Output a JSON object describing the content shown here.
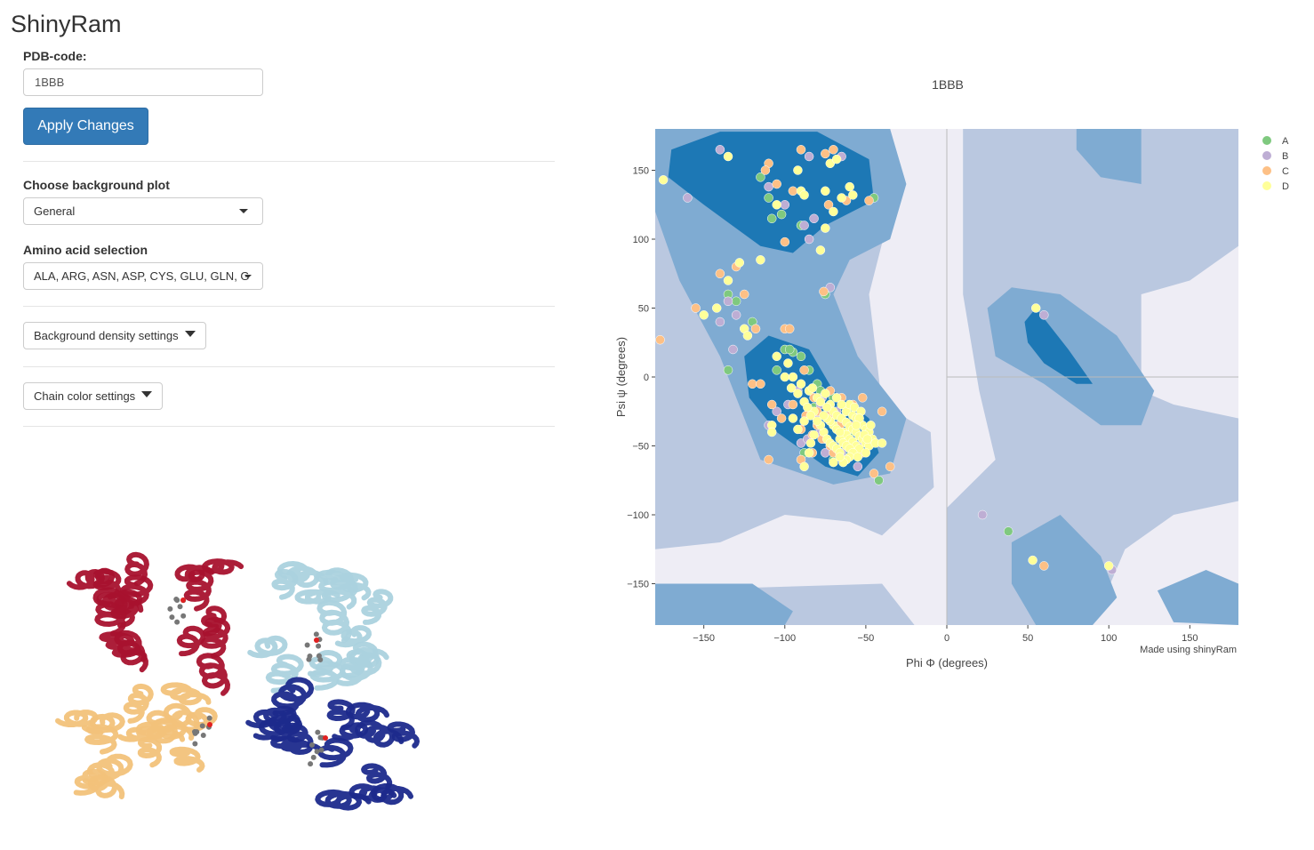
{
  "app": {
    "title": "ShinyRam"
  },
  "pdb": {
    "label": "PDB-code:",
    "value": "1BBB"
  },
  "apply_button": {
    "label": "Apply Changes"
  },
  "background_plot": {
    "label": "Choose background plot",
    "selected": "General"
  },
  "amino_selection": {
    "label": "Amino acid selection",
    "selected": "ALA, ARG, ASN, ASP, CYS, GLU, GLN, G"
  },
  "density_settings": {
    "label": "Background density settings"
  },
  "chain_settings": {
    "label": "Chain color settings"
  },
  "protein_view": {
    "chain_colors": [
      "#a8122e",
      "#f2c27a",
      "#abd2de",
      "#1c2a8c"
    ],
    "ligand_color": "#777777"
  },
  "chart_data": {
    "type": "scatter",
    "title": "1BBB",
    "xlabel": "Phi Φ (degrees)",
    "ylabel": "Psi ψ (degrees)",
    "xlim": [
      -180,
      180
    ],
    "ylim": [
      -180,
      180
    ],
    "xticks": [
      -150,
      -100,
      -50,
      0,
      50,
      100,
      150
    ],
    "yticks": [
      150,
      100,
      50,
      0,
      -50,
      -100,
      -150
    ],
    "xtick_labels": [
      "−150",
      "−100",
      "−50",
      "0",
      "50",
      "100",
      "150"
    ],
    "ytick_labels": [
      "150",
      "100",
      "50",
      "0",
      "−50",
      "−100",
      "−150"
    ],
    "annotation": "Made using shinyRam",
    "legend_position": "top-right",
    "density_colors": [
      "#eeedf5",
      "#bac8e0",
      "#7fabd2",
      "#1d78b5"
    ],
    "series": [
      {
        "name": "A",
        "color": "#7fc97f",
        "points": [
          [
            -115,
            145
          ],
          [
            -110,
            130
          ],
          [
            -108,
            115
          ],
          [
            -102,
            118
          ],
          [
            -90,
            110
          ],
          [
            -45,
            130
          ],
          [
            -135,
            60
          ],
          [
            -130,
            55
          ],
          [
            -120,
            40
          ],
          [
            -135,
            5
          ],
          [
            -100,
            20
          ],
          [
            -95,
            18
          ],
          [
            -90,
            15
          ],
          [
            -85,
            5
          ],
          [
            -80,
            -5
          ],
          [
            -78,
            -10
          ],
          [
            -70,
            -15
          ],
          [
            -65,
            -30
          ],
          [
            -60,
            -40
          ],
          [
            -75,
            -45
          ],
          [
            -80,
            -35
          ],
          [
            -85,
            -25
          ],
          [
            -88,
            -55
          ],
          [
            -42,
            -75
          ],
          [
            -60,
            -22
          ],
          [
            -82,
            -22
          ],
          [
            -70,
            -60
          ],
          [
            38,
            -112
          ],
          [
            -105,
            5
          ],
          [
            -75,
            60
          ],
          [
            -97,
            20
          ]
        ]
      },
      {
        "name": "B",
        "color": "#beaed4",
        "points": [
          [
            -140,
            165
          ],
          [
            -160,
            130
          ],
          [
            -110,
            138
          ],
          [
            -100,
            125
          ],
          [
            -85,
            100
          ],
          [
            -88,
            110
          ],
          [
            -82,
            115
          ],
          [
            -65,
            160
          ],
          [
            -85,
            160
          ],
          [
            -135,
            55
          ],
          [
            -140,
            40
          ],
          [
            -132,
            20
          ],
          [
            -92,
            -10
          ],
          [
            -78,
            -20
          ],
          [
            -72,
            -32
          ],
          [
            -90,
            -48
          ],
          [
            -86,
            -45
          ],
          [
            -75,
            -55
          ],
          [
            -65,
            -55
          ],
          [
            -55,
            -65
          ],
          [
            -68,
            -25
          ],
          [
            -98,
            -20
          ],
          [
            -105,
            -25
          ],
          [
            -110,
            -35
          ],
          [
            -80,
            -30
          ],
          [
            -60,
            -45
          ],
          [
            -55,
            -50
          ],
          [
            -50,
            -40
          ],
          [
            -72,
            65
          ],
          [
            -78,
            -40
          ],
          [
            -67,
            -35
          ],
          [
            22,
            -100
          ],
          [
            60,
            45
          ],
          [
            102,
            -140
          ],
          [
            -77,
            -15
          ],
          [
            -130,
            45
          ]
        ]
      },
      {
        "name": "C",
        "color": "#fdc086",
        "points": [
          [
            -177,
            27
          ],
          [
            -155,
            50
          ],
          [
            -140,
            75
          ],
          [
            -130,
            80
          ],
          [
            -125,
            60
          ],
          [
            -118,
            35
          ],
          [
            -120,
            -5
          ],
          [
            -115,
            -5
          ],
          [
            -108,
            -20
          ],
          [
            -95,
            -20
          ],
          [
            -100,
            35
          ],
          [
            -110,
            155
          ],
          [
            -112,
            150
          ],
          [
            -105,
            140
          ],
          [
            -90,
            165
          ],
          [
            -75,
            162
          ],
          [
            -70,
            165
          ],
          [
            -73,
            125
          ],
          [
            -62,
            128
          ],
          [
            -48,
            128
          ],
          [
            -100,
            98
          ],
          [
            -97,
            35
          ],
          [
            -85,
            -10
          ],
          [
            -82,
            -15
          ],
          [
            -77,
            -45
          ],
          [
            -83,
            -42
          ],
          [
            -72,
            -50
          ],
          [
            -70,
            -55
          ],
          [
            -55,
            -30
          ],
          [
            -50,
            -45
          ],
          [
            -45,
            -70
          ],
          [
            -35,
            -65
          ],
          [
            -40,
            -25
          ],
          [
            -52,
            -55
          ],
          [
            -66,
            -35
          ],
          [
            -58,
            -20
          ],
          [
            -65,
            -15
          ],
          [
            -87,
            -28
          ],
          [
            -90,
            -38
          ],
          [
            -80,
            -25
          ],
          [
            -72,
            -10
          ],
          [
            -64,
            -45
          ],
          [
            -88,
            5
          ],
          [
            -76,
            62
          ],
          [
            -110,
            -60
          ],
          [
            -90,
            -60
          ],
          [
            -95,
            135
          ],
          [
            -102,
            -30
          ],
          [
            -83,
            -55
          ],
          [
            -72,
            -28
          ],
          [
            -52,
            -15
          ],
          [
            60,
            -137
          ],
          [
            -80,
            -35
          ],
          [
            -60,
            -35
          ]
        ]
      },
      {
        "name": "D",
        "color": "#ffff99",
        "points": [
          [
            -175,
            143
          ],
          [
            -135,
            160
          ],
          [
            -105,
            125
          ],
          [
            -115,
            85
          ],
          [
            -92,
            150
          ],
          [
            -90,
            135
          ],
          [
            -88,
            132
          ],
          [
            -75,
            135
          ],
          [
            -72,
            155
          ],
          [
            -68,
            158
          ],
          [
            -60,
            138
          ],
          [
            -58,
            132
          ],
          [
            -70,
            120
          ],
          [
            -75,
            108
          ],
          [
            -78,
            92
          ],
          [
            -128,
            83
          ],
          [
            -135,
            70
          ],
          [
            -142,
            50
          ],
          [
            -125,
            35
          ],
          [
            -123,
            30
          ],
          [
            -105,
            15
          ],
          [
            -98,
            10
          ],
          [
            -95,
            0
          ],
          [
            -90,
            -5
          ],
          [
            -85,
            -10
          ],
          [
            -83,
            -8
          ],
          [
            -80,
            -15
          ],
          [
            -78,
            -18
          ],
          [
            -72,
            -20
          ],
          [
            -70,
            -25
          ],
          [
            -68,
            -28
          ],
          [
            -65,
            -30
          ],
          [
            -62,
            -33
          ],
          [
            -60,
            -36
          ],
          [
            -58,
            -38
          ],
          [
            -56,
            -40
          ],
          [
            -54,
            -43
          ],
          [
            -52,
            -45
          ],
          [
            -50,
            -48
          ],
          [
            -48,
            -50
          ],
          [
            -64,
            -40
          ],
          [
            -62,
            -42
          ],
          [
            -60,
            -45
          ],
          [
            -58,
            -47
          ],
          [
            -56,
            -50
          ],
          [
            -54,
            -52
          ],
          [
            -66,
            -45
          ],
          [
            -64,
            -48
          ],
          [
            -62,
            -50
          ],
          [
            -60,
            -52
          ],
          [
            -58,
            -55
          ],
          [
            -70,
            -35
          ],
          [
            -68,
            -38
          ],
          [
            -66,
            -40
          ],
          [
            -72,
            -32
          ],
          [
            -74,
            -30
          ],
          [
            -76,
            -40
          ],
          [
            -74,
            -45
          ],
          [
            -72,
            -48
          ],
          [
            -70,
            -50
          ],
          [
            -68,
            -52
          ],
          [
            -66,
            -55
          ],
          [
            -62,
            -25
          ],
          [
            -58,
            -28
          ],
          [
            -56,
            -30
          ],
          [
            -54,
            -33
          ],
          [
            -52,
            -35
          ],
          [
            -50,
            -38
          ],
          [
            -48,
            -40
          ],
          [
            -46,
            -45
          ],
          [
            -44,
            -48
          ],
          [
            -60,
            -58
          ],
          [
            -62,
            -60
          ],
          [
            -55,
            -58
          ],
          [
            -50,
            -55
          ],
          [
            -60,
            -20
          ],
          [
            -57,
            -22
          ],
          [
            -53,
            -25
          ],
          [
            -65,
            -20
          ],
          [
            -68,
            -15
          ],
          [
            -75,
            -12
          ],
          [
            -82,
            -25
          ],
          [
            -88,
            -32
          ],
          [
            -92,
            -38
          ],
          [
            -95,
            -30
          ],
          [
            -108,
            -35
          ],
          [
            -108,
            -40
          ],
          [
            -85,
            -55
          ],
          [
            -88,
            -65
          ],
          [
            -82,
            -42
          ],
          [
            -84,
            -48
          ],
          [
            -54,
            -30
          ],
          [
            -56,
            -35
          ],
          [
            -51,
            -42
          ],
          [
            -49,
            -45
          ],
          [
            -47,
            -35
          ],
          [
            -64,
            -62
          ],
          [
            -66,
            -58
          ],
          [
            -78,
            -35
          ],
          [
            -76,
            -28
          ],
          [
            -74,
            -22
          ],
          [
            -100,
            0
          ],
          [
            -96,
            -8
          ],
          [
            -92,
            -12
          ],
          [
            -88,
            -18
          ],
          [
            -86,
            -22
          ],
          [
            -84,
            -28
          ],
          [
            -80,
            -32
          ],
          [
            -40,
            -48
          ],
          [
            -70,
            -62
          ],
          [
            55,
            50
          ],
          [
            -150,
            45
          ],
          [
            53,
            -133
          ],
          [
            100,
            -137
          ],
          [
            -65,
            130
          ]
        ]
      }
    ]
  }
}
